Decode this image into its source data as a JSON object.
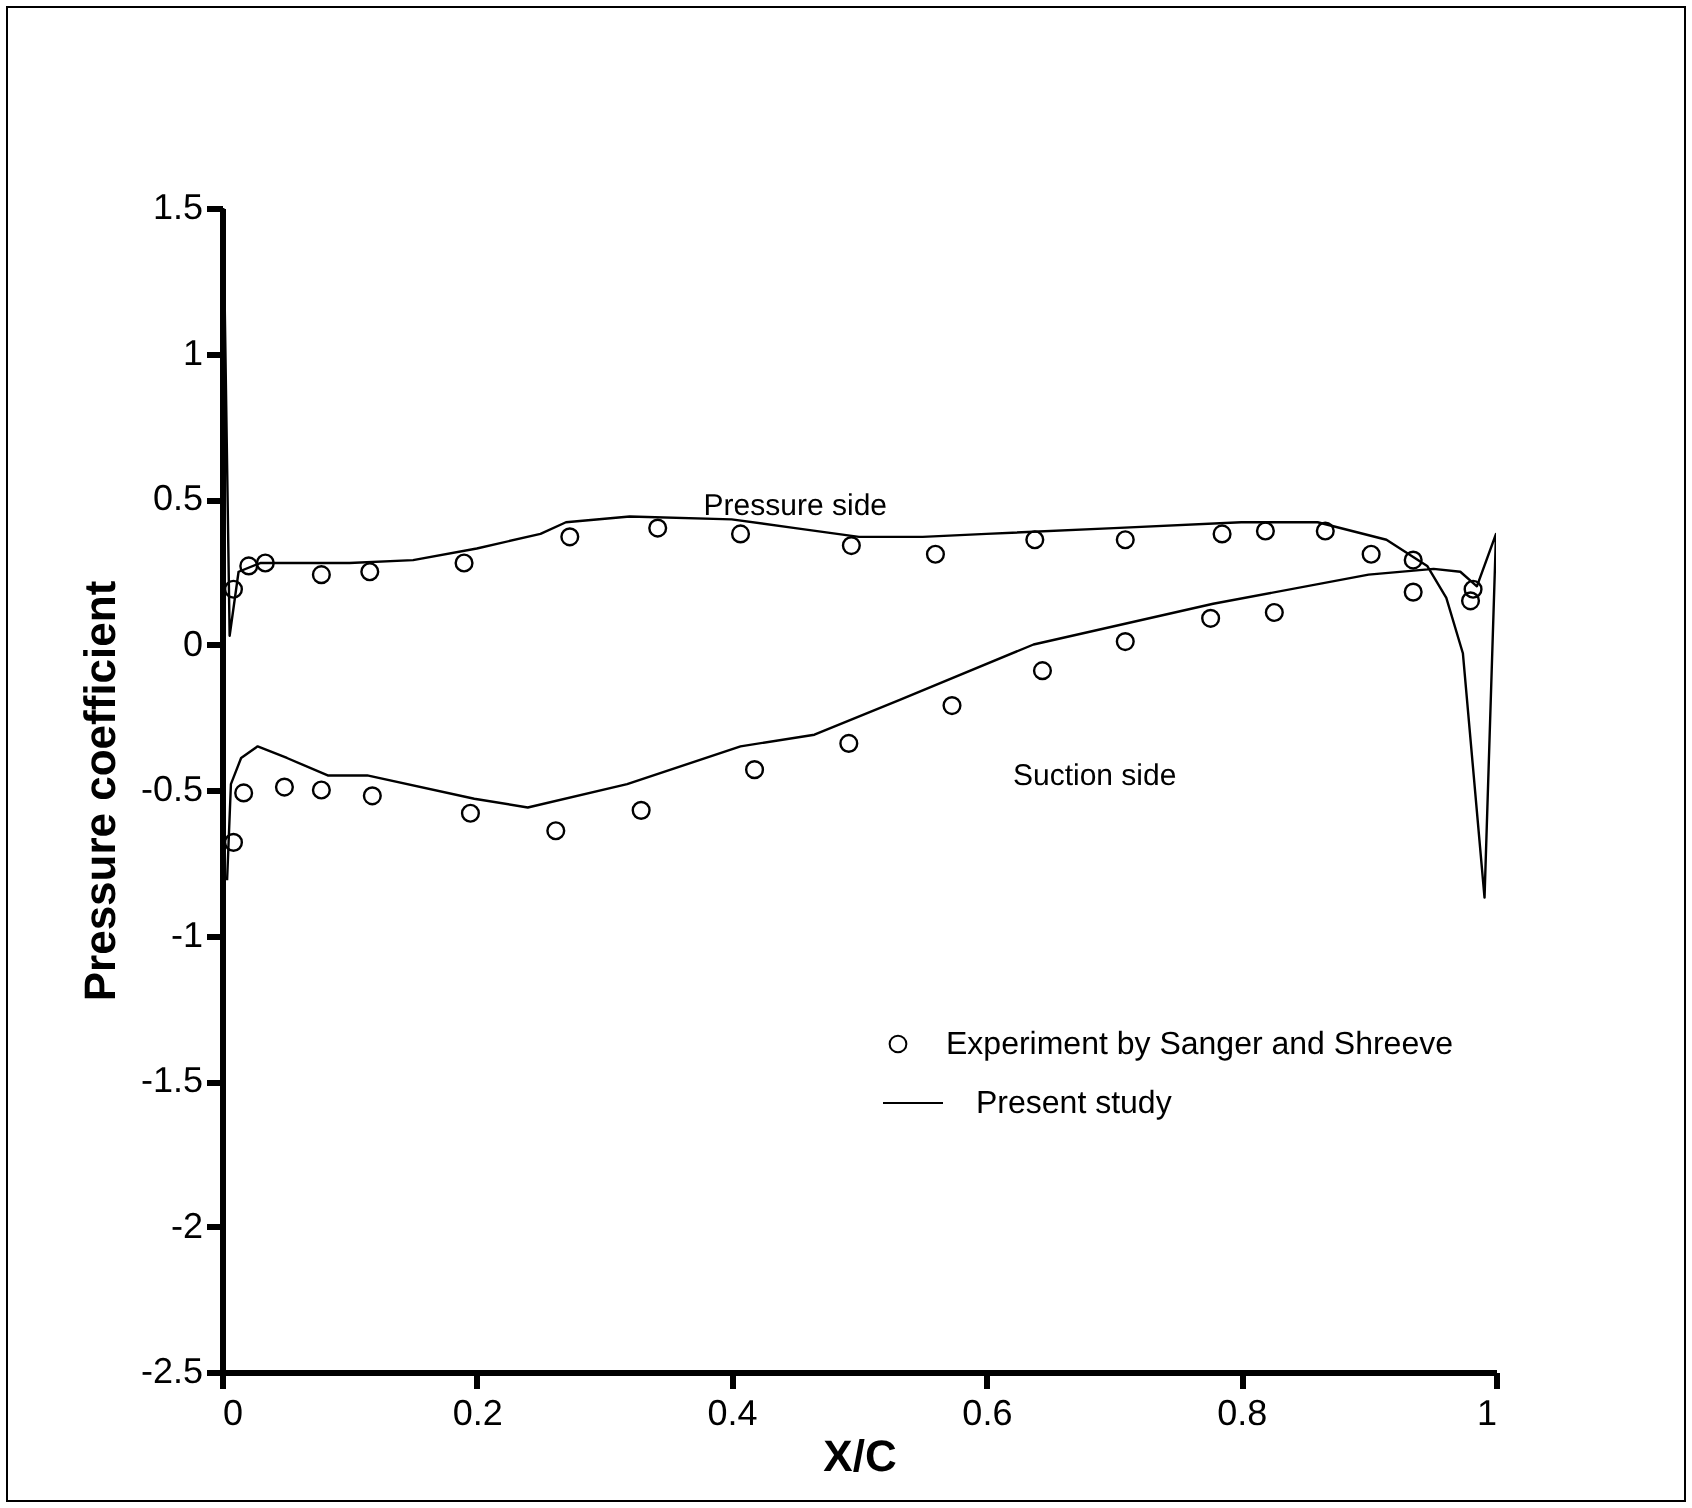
{
  "chart_data": {
    "type": "scatter",
    "xlabel": "X/C",
    "ylabel": "Pressure coefficient",
    "xlim": [
      0,
      1
    ],
    "ylim": [
      -2.5,
      1.5
    ],
    "xticks": [
      0,
      0.2,
      0.4,
      0.6,
      0.8,
      1
    ],
    "yticks": [
      -2.5,
      -2,
      -1.5,
      -1,
      -0.5,
      0,
      0.5,
      1,
      1.5
    ],
    "grid": false,
    "legend": "bottom right",
    "annotations": [
      "Pressure side",
      "Suction side"
    ],
    "series": [
      {
        "name": "Experiment by Sanger and Shreeve",
        "marker": "circle",
        "color": "#000000",
        "x": [
          0.009,
          0.021,
          0.034,
          0.078,
          0.116,
          0.19,
          0.273,
          0.342,
          0.407,
          0.494,
          0.56,
          0.638,
          0.709,
          0.785,
          0.819,
          0.866,
          0.902,
          0.935,
          0.982,
          0.98,
          0.935,
          0.826,
          0.776,
          0.709,
          0.644,
          0.573,
          0.492,
          0.418,
          0.329,
          0.262,
          0.195,
          0.118,
          0.078,
          0.049,
          0.017,
          0.009
        ],
        "values": [
          0.19,
          0.27,
          0.28,
          0.24,
          0.25,
          0.28,
          0.37,
          0.4,
          0.38,
          0.34,
          0.31,
          0.36,
          0.36,
          0.38,
          0.39,
          0.39,
          0.31,
          0.29,
          0.19,
          0.15,
          0.18,
          0.11,
          0.09,
          0.01,
          -0.09,
          -0.21,
          -0.34,
          -0.43,
          -0.57,
          -0.64,
          -0.58,
          -0.52,
          -0.5,
          -0.49,
          -0.51,
          -0.68
        ]
      },
      {
        "name": "Present study",
        "type": "line",
        "marker": "none",
        "line_style": "solid",
        "color": "#000000",
        "x": [
          0.004,
          0.007,
          0.015,
          0.028,
          0.051,
          0.083,
          0.114,
          0.198,
          0.24,
          0.318,
          0.407,
          0.465,
          0.532,
          0.637,
          0.778,
          0.9,
          0.951,
          0.972,
          0.985,
          1.0,
          0.991,
          0.974,
          0.961,
          0.946,
          0.914,
          0.86,
          0.8,
          0.7,
          0.6,
          0.55,
          0.5,
          0.45,
          0.4,
          0.32,
          0.27,
          0.25,
          0.2,
          0.15,
          0.1,
          0.03,
          0.013,
          0.006,
          0.001
        ],
        "values": [
          -0.81,
          -0.48,
          -0.39,
          -0.35,
          -0.39,
          -0.45,
          -0.45,
          -0.53,
          -0.56,
          -0.48,
          -0.35,
          -0.31,
          -0.19,
          0.0,
          0.14,
          0.24,
          0.26,
          0.25,
          0.2,
          0.38,
          -0.87,
          -0.03,
          0.16,
          0.27,
          0.36,
          0.42,
          0.42,
          0.4,
          0.38,
          0.37,
          0.37,
          0.4,
          0.43,
          0.44,
          0.42,
          0.38,
          0.33,
          0.29,
          0.28,
          0.28,
          0.25,
          0.03,
          1.5
        ]
      }
    ]
  }
}
